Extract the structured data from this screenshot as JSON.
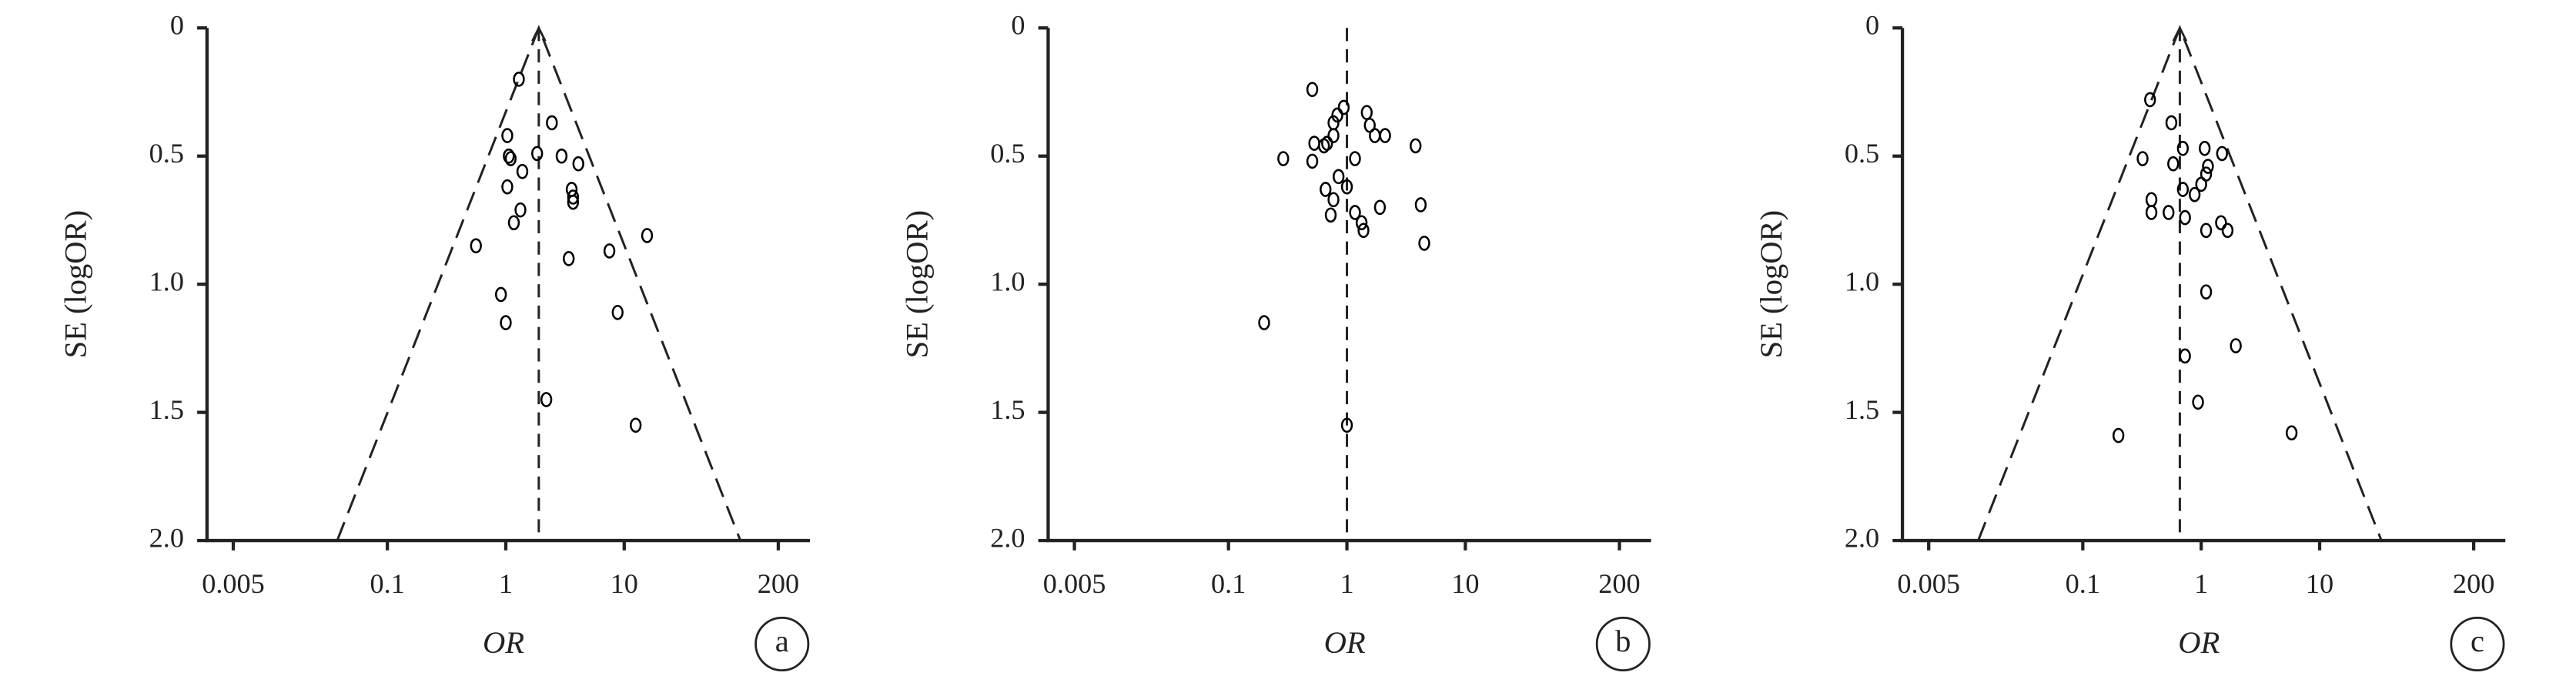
{
  "chart_data": [
    {
      "type": "funnel",
      "panel_label": "a",
      "xlabel": "OR",
      "ylabel": "SE (logOR)",
      "xscale": "log",
      "xlim": [
        0.003,
        370
      ],
      "xticks": [
        0.005,
        0.1,
        1,
        10,
        200
      ],
      "ylim": [
        0,
        2
      ],
      "y_reversed": true,
      "yticks": [
        0,
        0.5,
        {
          "value": 1,
          "label": "1.0"
        },
        1.5,
        {
          "value": 2,
          "label": "2.0"
        }
      ],
      "pooled_or": 1.9,
      "funnel": true,
      "color": "#000000",
      "x": [
        1.29,
        2.45,
        1.03,
        1.06,
        1.1,
        1.84,
        2.96,
        4.1,
        1.38,
        1.03,
        3.6,
        3.7,
        3.7,
        1.33,
        1.17,
        0.56,
        3.4,
        7.5,
        15.6,
        0.91,
        1.0,
        8.8,
        2.2,
        12.5
      ],
      "values": [
        0.2,
        0.37,
        0.42,
        0.5,
        0.51,
        0.49,
        0.5,
        0.53,
        0.56,
        0.62,
        0.63,
        0.66,
        0.68,
        0.71,
        0.76,
        0.85,
        0.9,
        0.87,
        0.81,
        1.04,
        1.15,
        1.11,
        1.45,
        1.55
      ]
    },
    {
      "type": "funnel",
      "panel_label": "b",
      "xlabel": "OR",
      "ylabel": "SE (logOR)",
      "xscale": "log",
      "xlim": [
        0.003,
        370
      ],
      "xticks": [
        0.005,
        0.1,
        1,
        10,
        200
      ],
      "ylim": [
        0,
        2
      ],
      "y_reversed": true,
      "yticks": [
        0,
        0.5,
        {
          "value": 1,
          "label": "1.0"
        },
        1.5,
        {
          "value": 2,
          "label": "2.0"
        }
      ],
      "pooled_or": 1.0,
      "funnel": false,
      "color": "#000000",
      "x": [
        0.51,
        0.94,
        0.83,
        0.77,
        1.47,
        1.56,
        1.72,
        2.1,
        0.77,
        0.68,
        0.53,
        0.64,
        3.8,
        0.29,
        0.51,
        1.17,
        0.85,
        1.0,
        0.66,
        0.77,
        0.73,
        1.9,
        4.2,
        1.17,
        1.33,
        1.38,
        4.5,
        0.2,
        1.0
      ],
      "values": [
        0.24,
        0.31,
        0.34,
        0.37,
        0.33,
        0.38,
        0.42,
        0.42,
        0.42,
        0.45,
        0.45,
        0.46,
        0.46,
        0.51,
        0.52,
        0.51,
        0.58,
        0.62,
        0.63,
        0.67,
        0.73,
        0.7,
        0.69,
        0.72,
        0.76,
        0.79,
        0.84,
        1.15,
        1.55
      ]
    },
    {
      "type": "funnel",
      "panel_label": "c",
      "xlabel": "OR",
      "ylabel": "SE (logOR)",
      "xscale": "log",
      "xlim": [
        0.003,
        370
      ],
      "xticks": [
        0.005,
        0.1,
        1,
        10,
        200
      ],
      "ylim": [
        0,
        2
      ],
      "y_reversed": true,
      "yticks": [
        0,
        0.5,
        {
          "value": 1,
          "label": "1.0"
        },
        1.5,
        {
          "value": 2,
          "label": "2.0"
        }
      ],
      "pooled_or": 0.66,
      "funnel": true,
      "color": "#000000",
      "x": [
        0.37,
        0.56,
        0.32,
        0.7,
        1.07,
        1.5,
        0.58,
        1.14,
        1.1,
        1.0,
        0.7,
        0.88,
        0.38,
        0.38,
        0.53,
        0.73,
        1.47,
        1.67,
        1.1,
        1.1,
        1.96,
        0.73,
        0.94,
        0.2,
        5.8
      ],
      "values": [
        0.28,
        0.37,
        0.51,
        0.47,
        0.47,
        0.49,
        0.53,
        0.54,
        0.57,
        0.61,
        0.63,
        0.65,
        0.67,
        0.72,
        0.72,
        0.74,
        0.76,
        0.79,
        0.79,
        1.03,
        1.24,
        1.28,
        1.46,
        1.59,
        1.58
      ]
    }
  ]
}
